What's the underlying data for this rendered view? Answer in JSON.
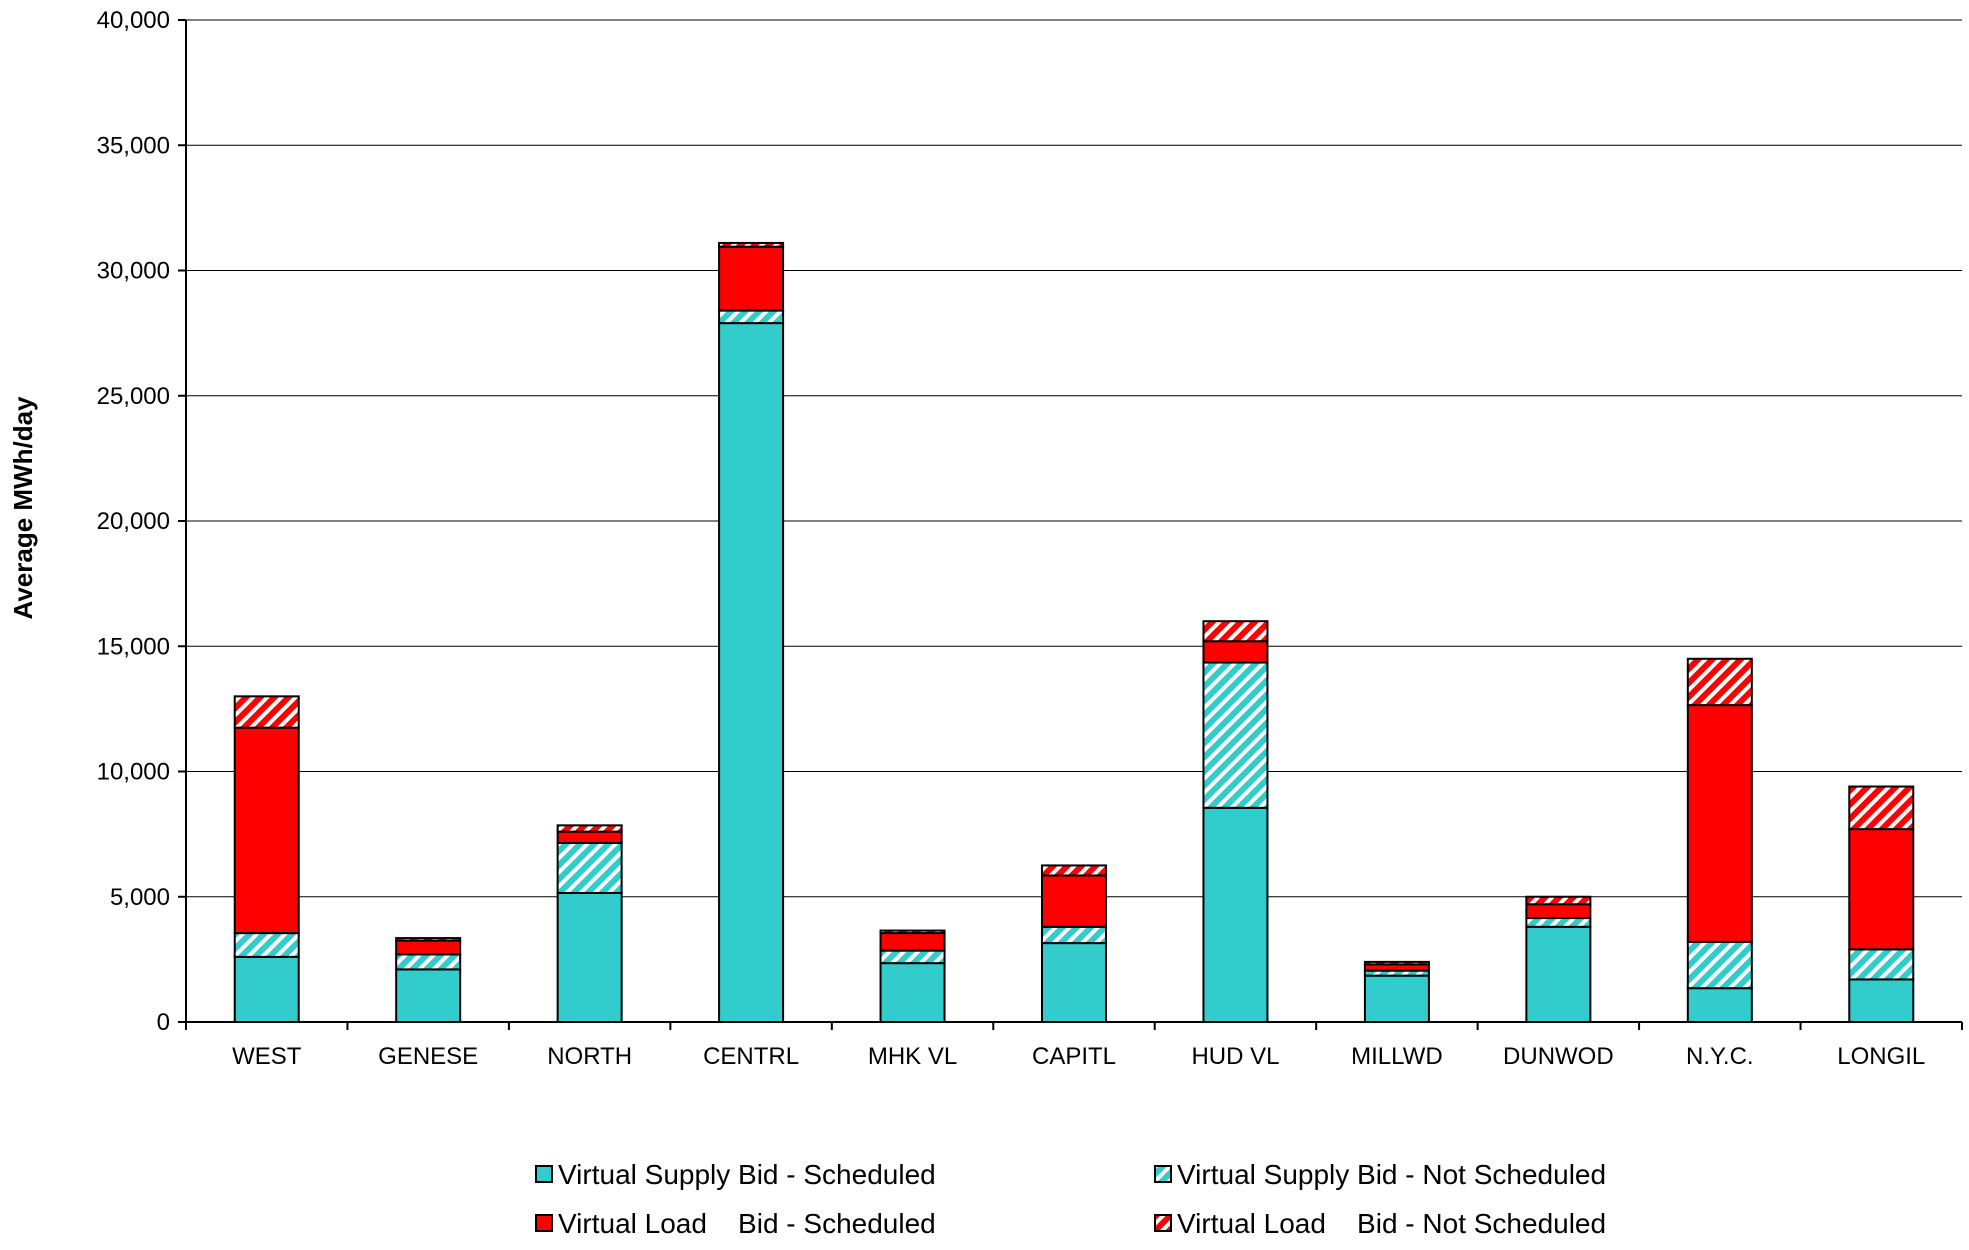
{
  "chart_data": {
    "type": "bar",
    "stacked": true,
    "title": "",
    "xlabel": "",
    "ylabel": "Average MWh/day",
    "ylim": [
      0,
      40000
    ],
    "yticks": [
      0,
      5000,
      10000,
      15000,
      20000,
      25000,
      30000,
      35000,
      40000
    ],
    "ytick_labels": [
      "0",
      "5,000",
      "10,000",
      "15,000",
      "20,000",
      "25,000",
      "30,000",
      "35,000",
      "40,000"
    ],
    "grid": true,
    "legend_position": "bottom",
    "categories": [
      "WEST",
      "GENESE",
      "NORTH",
      "CENTRL",
      "MHK VL",
      "CAPITL",
      "HUD VL",
      "MILLWD",
      "DUNWOD",
      "N.Y.C.",
      "LONGIL"
    ],
    "series": [
      {
        "name": "Virtual Supply Bid - Scheduled",
        "color": "#33CCCC",
        "pattern": "solid",
        "values": [
          2600,
          2100,
          5150,
          27900,
          2350,
          3150,
          8550,
          1850,
          3800,
          1350,
          1700
        ]
      },
      {
        "name": "Virtual Supply Bid - Not Scheduled",
        "color": "#33CCCC",
        "pattern": "hatched",
        "values": [
          950,
          600,
          2000,
          500,
          500,
          650,
          5800,
          200,
          350,
          1850,
          1200
        ]
      },
      {
        "name": "Virtual Load    Bid - Scheduled",
        "color": "#FF0000",
        "pattern": "solid",
        "values": [
          8200,
          550,
          450,
          2550,
          700,
          2050,
          850,
          250,
          550,
          9450,
          4800
        ]
      },
      {
        "name": "Virtual Load    Bid - Not Scheduled",
        "color": "#FF0000",
        "pattern": "hatched",
        "values": [
          1250,
          100,
          250,
          150,
          100,
          400,
          800,
          100,
          300,
          1850,
          1700
        ]
      }
    ]
  }
}
